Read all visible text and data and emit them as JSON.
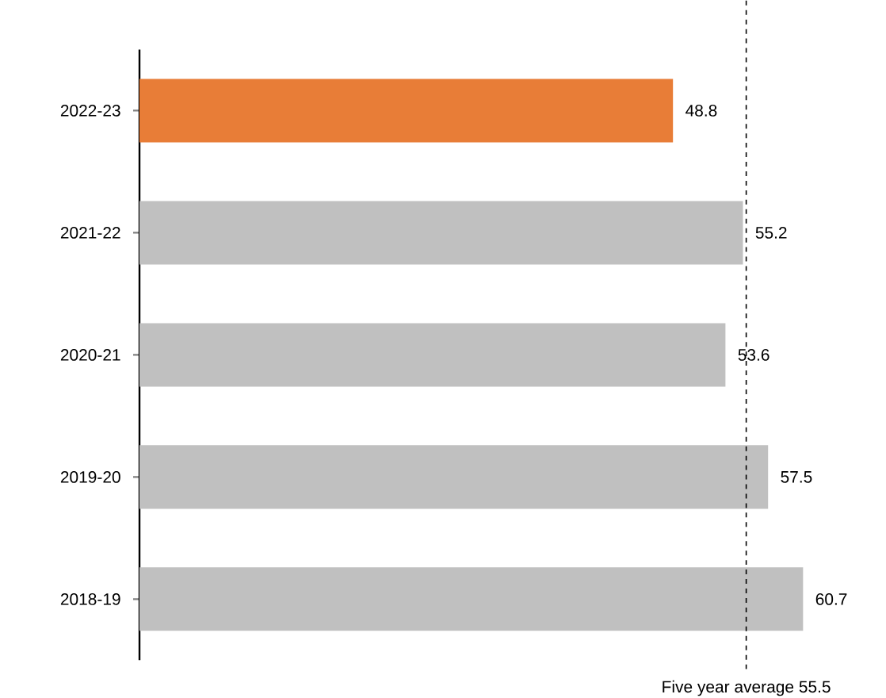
{
  "chart_data": {
    "type": "bar",
    "orientation": "horizontal",
    "categories": [
      "2022-23",
      "2021-22",
      "2020-21",
      "2019-20",
      "2018-19"
    ],
    "values": [
      48.8,
      55.2,
      53.6,
      57.5,
      60.7
    ],
    "colors": [
      "#e87d37",
      "#c0c0c0",
      "#c0c0c0",
      "#c0c0c0",
      "#c0c0c0"
    ],
    "data_labels": true,
    "ref_lines": [
      {
        "axis": "x",
        "value": 55.5,
        "label": "Five year average 55.5",
        "line_style": "dashed",
        "color": "#000000"
      }
    ]
  }
}
